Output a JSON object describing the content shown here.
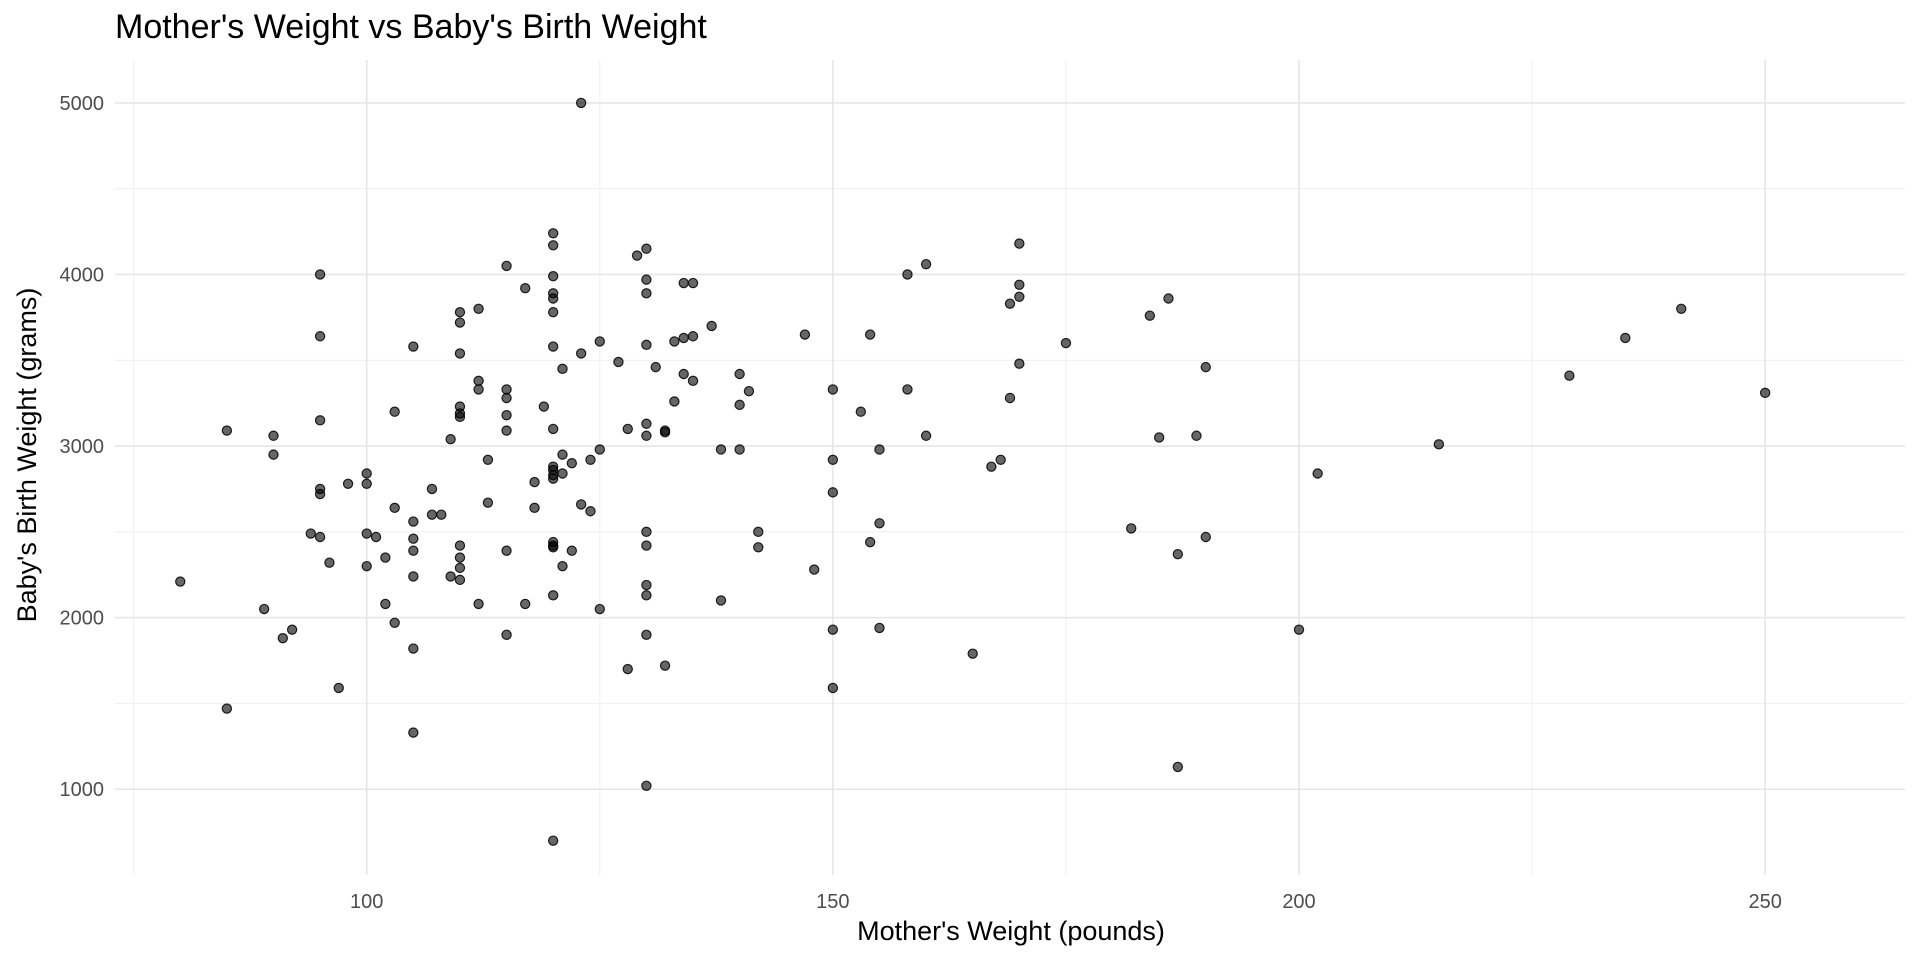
{
  "chart_data": {
    "type": "scatter",
    "title": "Mother's Weight vs Baby's Birth Weight",
    "xlabel": "Mother's Weight (pounds)",
    "ylabel": "Baby's Birth Weight (grams)",
    "xlim": [
      73,
      265
    ],
    "ylim": [
      500,
      5250
    ],
    "x_ticks": [
      100,
      150,
      200,
      250
    ],
    "y_ticks": [
      1000,
      2000,
      3000,
      4000,
      5000
    ],
    "x_minor_ticks": [
      75,
      125,
      175,
      225
    ],
    "y_minor_ticks": [
      1500,
      2500,
      3500,
      4500
    ],
    "grid": true,
    "point_color": "#000000",
    "point_alpha": 0.6,
    "points": [
      [
        80,
        2210
      ],
      [
        85,
        3090
      ],
      [
        85,
        1470
      ],
      [
        89,
        2050
      ],
      [
        90,
        3060
      ],
      [
        90,
        2950
      ],
      [
        91,
        1880
      ],
      [
        92,
        1930
      ],
      [
        94,
        2490
      ],
      [
        95,
        4000
      ],
      [
        95,
        3640
      ],
      [
        95,
        3150
      ],
      [
        95,
        2750
      ],
      [
        95,
        2720
      ],
      [
        95,
        2470
      ],
      [
        96,
        2320
      ],
      [
        97,
        1590
      ],
      [
        98,
        2780
      ],
      [
        100,
        2840
      ],
      [
        100,
        2780
      ],
      [
        100,
        2490
      ],
      [
        100,
        2300
      ],
      [
        101,
        2470
      ],
      [
        102,
        2080
      ],
      [
        102,
        2350
      ],
      [
        103,
        3200
      ],
      [
        103,
        2640
      ],
      [
        103,
        1970
      ],
      [
        105,
        3580
      ],
      [
        105,
        2560
      ],
      [
        105,
        2460
      ],
      [
        105,
        2390
      ],
      [
        105,
        2240
      ],
      [
        105,
        1820
      ],
      [
        105,
        1330
      ],
      [
        107,
        2600
      ],
      [
        107,
        2750
      ],
      [
        108,
        2600
      ],
      [
        109,
        3040
      ],
      [
        109,
        2240
      ],
      [
        110,
        3780
      ],
      [
        110,
        3720
      ],
      [
        110,
        3540
      ],
      [
        110,
        3230
      ],
      [
        110,
        3190
      ],
      [
        110,
        3170
      ],
      [
        110,
        2420
      ],
      [
        110,
        2350
      ],
      [
        110,
        2290
      ],
      [
        110,
        2220
      ],
      [
        112,
        3800
      ],
      [
        112,
        3380
      ],
      [
        112,
        3330
      ],
      [
        112,
        2080
      ],
      [
        113,
        2920
      ],
      [
        113,
        2670
      ],
      [
        115,
        4050
      ],
      [
        115,
        3330
      ],
      [
        115,
        3280
      ],
      [
        115,
        3180
      ],
      [
        115,
        3090
      ],
      [
        115,
        2390
      ],
      [
        115,
        1900
      ],
      [
        117,
        3920
      ],
      [
        117,
        2080
      ],
      [
        118,
        2640
      ],
      [
        118,
        2790
      ],
      [
        119,
        3230
      ],
      [
        120,
        4240
      ],
      [
        120,
        4170
      ],
      [
        120,
        3990
      ],
      [
        120,
        3890
      ],
      [
        120,
        3860
      ],
      [
        120,
        3780
      ],
      [
        120,
        3580
      ],
      [
        120,
        3100
      ],
      [
        120,
        2880
      ],
      [
        120,
        2860
      ],
      [
        120,
        2830
      ],
      [
        120,
        2810
      ],
      [
        120,
        2440
      ],
      [
        120,
        2420
      ],
      [
        120,
        2410
      ],
      [
        120,
        2130
      ],
      [
        120,
        700
      ],
      [
        121,
        3450
      ],
      [
        121,
        2950
      ],
      [
        121,
        2840
      ],
      [
        121,
        2300
      ],
      [
        122,
        2900
      ],
      [
        122,
        2390
      ],
      [
        123,
        5000
      ],
      [
        123,
        3540
      ],
      [
        123,
        2660
      ],
      [
        124,
        2620
      ],
      [
        124,
        2920
      ],
      [
        125,
        3610
      ],
      [
        125,
        2980
      ],
      [
        125,
        2050
      ],
      [
        127,
        3490
      ],
      [
        128,
        3100
      ],
      [
        128,
        1700
      ],
      [
        129,
        4110
      ],
      [
        130,
        4150
      ],
      [
        130,
        3970
      ],
      [
        130,
        3890
      ],
      [
        130,
        3590
      ],
      [
        130,
        3130
      ],
      [
        130,
        3060
      ],
      [
        130,
        2500
      ],
      [
        130,
        2420
      ],
      [
        130,
        2190
      ],
      [
        130,
        2130
      ],
      [
        130,
        1900
      ],
      [
        130,
        1020
      ],
      [
        131,
        3460
      ],
      [
        132,
        3080
      ],
      [
        132,
        3090
      ],
      [
        132,
        1720
      ],
      [
        133,
        3610
      ],
      [
        133,
        3260
      ],
      [
        134,
        3950
      ],
      [
        134,
        3630
      ],
      [
        134,
        3420
      ],
      [
        135,
        3950
      ],
      [
        135,
        3640
      ],
      [
        135,
        3380
      ],
      [
        137,
        3700
      ],
      [
        138,
        2980
      ],
      [
        138,
        2100
      ],
      [
        140,
        3420
      ],
      [
        140,
        3240
      ],
      [
        140,
        2980
      ],
      [
        141,
        3320
      ],
      [
        142,
        2500
      ],
      [
        142,
        2410
      ],
      [
        147,
        3650
      ],
      [
        148,
        2280
      ],
      [
        150,
        3330
      ],
      [
        150,
        2920
      ],
      [
        150,
        2730
      ],
      [
        150,
        1930
      ],
      [
        150,
        1590
      ],
      [
        153,
        3200
      ],
      [
        154,
        3650
      ],
      [
        154,
        2440
      ],
      [
        155,
        2980
      ],
      [
        155,
        2550
      ],
      [
        155,
        1940
      ],
      [
        158,
        4000
      ],
      [
        158,
        3330
      ],
      [
        160,
        4060
      ],
      [
        160,
        3060
      ],
      [
        165,
        1790
      ],
      [
        167,
        2880
      ],
      [
        168,
        2920
      ],
      [
        169,
        3830
      ],
      [
        169,
        3280
      ],
      [
        170,
        4180
      ],
      [
        170,
        3940
      ],
      [
        170,
        3870
      ],
      [
        170,
        3480
      ],
      [
        175,
        3600
      ],
      [
        182,
        2520
      ],
      [
        184,
        3760
      ],
      [
        185,
        3050
      ],
      [
        186,
        3860
      ],
      [
        187,
        2370
      ],
      [
        187,
        1130
      ],
      [
        189,
        3060
      ],
      [
        190,
        3460
      ],
      [
        190,
        2470
      ],
      [
        200,
        1930
      ],
      [
        202,
        2840
      ],
      [
        215,
        3010
      ],
      [
        229,
        3410
      ],
      [
        235,
        3630
      ],
      [
        241,
        3800
      ],
      [
        250,
        3310
      ]
    ]
  }
}
